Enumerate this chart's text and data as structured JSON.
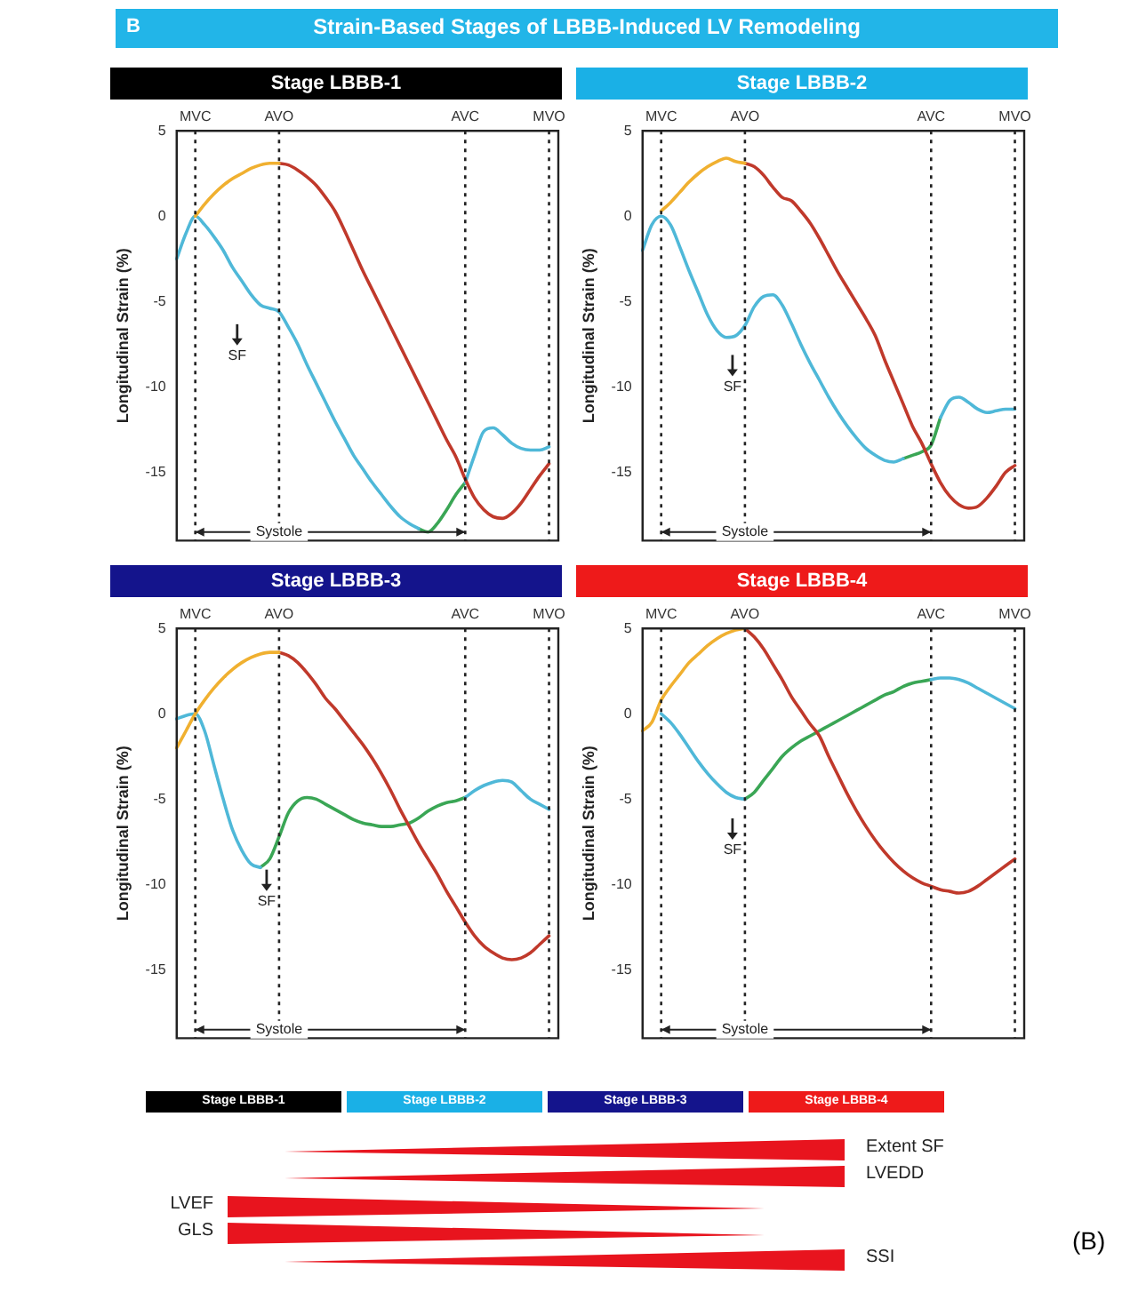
{
  "chart_data": [
    {
      "type": "other",
      "title": "Strain-Based Stages of LBBB-Induced LV Remodeling",
      "annotations": [
        "B"
      ]
    },
    {
      "type": "line",
      "title": "Stage LBBB-1",
      "ylabel": "Longitudinal Strain (%)",
      "ylim": [
        -19,
        5
      ],
      "yticks": [
        5,
        0,
        -5,
        -10,
        -15
      ],
      "grid": false,
      "legend": false,
      "marker": "none",
      "line_style": "solid",
      "categories": [
        null,
        null,
        "MVC",
        null,
        null,
        null,
        null,
        null,
        null,
        null,
        null,
        "AVO",
        null,
        null,
        null,
        null,
        null,
        null,
        null,
        null,
        null,
        null,
        null,
        null,
        null,
        null,
        null,
        null,
        null,
        null,
        null,
        "AVC",
        null,
        null,
        null,
        null,
        null,
        null,
        null,
        null,
        "MVO",
        null
      ],
      "series": [
        {
          "color": "#f0b030",
          "values": [
            null,
            null,
            0,
            0.7,
            1.3,
            1.8,
            2.2,
            2.5,
            2.8,
            3,
            3.1,
            3.1,
            null,
            null,
            null,
            null,
            null,
            null,
            null,
            null,
            null,
            null,
            null,
            null,
            null,
            null,
            null,
            null,
            null,
            null,
            null,
            null,
            null,
            null,
            null,
            null,
            null,
            null,
            null,
            null,
            null,
            null
          ]
        },
        {
          "color": "#c0392b",
          "values": [
            null,
            null,
            null,
            null,
            null,
            null,
            null,
            null,
            null,
            null,
            null,
            3.1,
            3,
            2.7,
            2.3,
            1.8,
            1.1,
            0.3,
            -0.8,
            -2,
            -3.2,
            -4.3,
            -5.4,
            -6.5,
            -7.6,
            -8.7,
            -9.8,
            -10.9,
            -12,
            -13.1,
            -14.1,
            -15.4,
            -16.5,
            -17.2,
            -17.6,
            -17.7,
            -17.4,
            -16.8,
            -16,
            -15.2,
            -14.5,
            null
          ]
        },
        {
          "color": "#4fb8d8",
          "values": [
            -2.5,
            -1,
            0,
            -0.5,
            -1.2,
            -2,
            -3,
            -3.8,
            -4.6,
            -5.2,
            -5.4,
            -5.6,
            -6.5,
            -7.5,
            -8.7,
            -9.8,
            -10.9,
            -12,
            -13,
            -14,
            -14.8,
            -15.6,
            -16.3,
            -17,
            -17.6,
            -18,
            -18.3,
            null,
            null,
            null,
            null,
            -15.6,
            -14,
            -12.6,
            -12.4,
            -12.8,
            -13.3,
            -13.6,
            -13.7,
            -13.7,
            -13.5,
            null
          ]
        },
        {
          "color": "#3aa655",
          "values": [
            null,
            null,
            null,
            null,
            null,
            null,
            null,
            null,
            null,
            null,
            null,
            null,
            null,
            null,
            null,
            null,
            null,
            null,
            null,
            null,
            null,
            null,
            null,
            null,
            null,
            null,
            -18.3,
            -18.5,
            -18,
            -17.2,
            -16.3,
            -15.6,
            null,
            null,
            null,
            null,
            null,
            null,
            null,
            null,
            null,
            null
          ]
        }
      ],
      "ref_lines": [
        {
          "axis": "x",
          "value": "MVC",
          "line_style": "dotted"
        },
        {
          "axis": "x",
          "value": "AVO",
          "line_style": "dotted"
        },
        {
          "axis": "x",
          "value": "AVC",
          "line_style": "dotted"
        },
        {
          "axis": "x",
          "value": "MVO",
          "line_style": "dotted"
        }
      ],
      "annotations": [
        "SF",
        {
          "text": "Systole",
          "x": "AVO",
          "y": -18.5
        }
      ]
    },
    {
      "type": "line",
      "title": "Stage LBBB-2",
      "ylabel": "Longitudinal Strain (%)",
      "ylim": [
        -19,
        5
      ],
      "yticks": [
        5,
        0,
        -5,
        -10,
        -15
      ],
      "grid": false,
      "legend": false,
      "marker": "none",
      "line_style": "solid",
      "categories": [
        null,
        null,
        "MVC",
        null,
        null,
        null,
        null,
        null,
        null,
        null,
        null,
        "AVO",
        null,
        null,
        null,
        null,
        null,
        null,
        null,
        null,
        null,
        null,
        null,
        null,
        null,
        null,
        null,
        null,
        null,
        null,
        null,
        "AVC",
        null,
        null,
        null,
        null,
        null,
        null,
        null,
        null,
        "MVO",
        null
      ],
      "series": [
        {
          "color": "#f0b030",
          "values": [
            null,
            null,
            0.3,
            0.8,
            1.4,
            2,
            2.5,
            2.9,
            3.2,
            3.4,
            3.2,
            3.1,
            null,
            null,
            null,
            null,
            null,
            null,
            null,
            null,
            null,
            null,
            null,
            null,
            null,
            null,
            null,
            null,
            null,
            null,
            null,
            null,
            null,
            null,
            null,
            null,
            null,
            null,
            null,
            null,
            null,
            null
          ]
        },
        {
          "color": "#c0392b",
          "values": [
            null,
            null,
            null,
            null,
            null,
            null,
            null,
            null,
            null,
            null,
            null,
            3.1,
            2.9,
            2.4,
            1.7,
            1.1,
            0.9,
            0.3,
            -0.4,
            -1.3,
            -2.3,
            -3.3,
            -4.2,
            -5.1,
            -6,
            -7,
            -8.4,
            -9.7,
            -11,
            -12.3,
            -13.3,
            -14.5,
            -15.6,
            -16.4,
            -16.9,
            -17.1,
            -17,
            -16.5,
            -15.8,
            -15,
            -14.6,
            null
          ]
        },
        {
          "color": "#4fb8d8",
          "values": [
            -2,
            -0.5,
            0,
            -0.5,
            -1.8,
            -3.2,
            -4.5,
            -5.8,
            -6.7,
            -7.1,
            -7,
            -6.4,
            -5.3,
            -4.7,
            -4.6,
            -5.2,
            -6.3,
            -7.5,
            -8.6,
            -9.6,
            -10.6,
            -11.5,
            -12.3,
            -13,
            -13.6,
            -14,
            -14.3,
            -14.4,
            -14.2,
            null,
            null,
            null,
            -11.8,
            -10.8,
            -10.6,
            -10.9,
            -11.3,
            -11.5,
            -11.4,
            -11.3,
            -11.3,
            null
          ]
        },
        {
          "color": "#3aa655",
          "values": [
            null,
            null,
            null,
            null,
            null,
            null,
            null,
            null,
            null,
            null,
            null,
            null,
            null,
            null,
            null,
            null,
            null,
            null,
            null,
            null,
            null,
            null,
            null,
            null,
            null,
            null,
            null,
            null,
            -14.2,
            -14,
            -13.8,
            -13.4,
            -11.8,
            null,
            null,
            null,
            null,
            null,
            null,
            null,
            null,
            null
          ]
        }
      ],
      "ref_lines": [
        {
          "axis": "x",
          "value": "MVC",
          "line_style": "dotted"
        },
        {
          "axis": "x",
          "value": "AVO",
          "line_style": "dotted"
        },
        {
          "axis": "x",
          "value": "AVC",
          "line_style": "dotted"
        },
        {
          "axis": "x",
          "value": "MVO",
          "line_style": "dotted"
        }
      ],
      "annotations": [
        {
          "text": "SF",
          "x": "AVO",
          "y": -10
        },
        {
          "text": "Systole",
          "x": "AVO",
          "y": -18.5
        }
      ]
    },
    {
      "type": "line",
      "title": "Stage LBBB-3",
      "ylabel": "Longitudinal Strain (%)",
      "ylim": [
        -19,
        5
      ],
      "yticks": [
        5,
        0,
        -5,
        -10,
        -15
      ],
      "grid": false,
      "legend": false,
      "marker": "none",
      "line_style": "solid",
      "categories": [
        null,
        null,
        "MVC",
        null,
        null,
        null,
        null,
        null,
        null,
        null,
        null,
        "AVO",
        null,
        null,
        null,
        null,
        null,
        null,
        null,
        null,
        null,
        null,
        null,
        null,
        null,
        null,
        null,
        null,
        null,
        null,
        null,
        "AVC",
        null,
        null,
        null,
        null,
        null,
        null,
        null,
        null,
        "MVO",
        null
      ],
      "series": [
        {
          "color": "#f0b030",
          "values": [
            -2,
            -1,
            0,
            0.8,
            1.5,
            2.1,
            2.6,
            3,
            3.3,
            3.5,
            3.6,
            3.6,
            null,
            null,
            null,
            null,
            null,
            null,
            null,
            null,
            null,
            null,
            null,
            null,
            null,
            null,
            null,
            null,
            null,
            null,
            null,
            null,
            null,
            null,
            null,
            null,
            null,
            null,
            null,
            null,
            null,
            null
          ]
        },
        {
          "color": "#c0392b",
          "values": [
            null,
            null,
            null,
            null,
            null,
            null,
            null,
            null,
            null,
            null,
            null,
            3.6,
            3.4,
            3,
            2.4,
            1.7,
            0.9,
            0.3,
            -0.4,
            -1.1,
            -1.8,
            -2.6,
            -3.5,
            -4.5,
            -5.6,
            -6.6,
            -7.6,
            -8.5,
            -9.4,
            -10.4,
            -11.3,
            -12.2,
            -13,
            -13.6,
            -14,
            -14.3,
            -14.4,
            -14.3,
            -14,
            -13.5,
            -13,
            null
          ]
        },
        {
          "color": "#4fb8d8",
          "values": [
            -0.3,
            -0.1,
            0,
            -1,
            -3,
            -5,
            -6.8,
            -8,
            -8.8,
            -9,
            null,
            null,
            null,
            null,
            null,
            null,
            null,
            null,
            null,
            null,
            null,
            null,
            null,
            null,
            null,
            null,
            null,
            null,
            null,
            null,
            null,
            -4.9,
            -4.5,
            -4.2,
            -4,
            -3.9,
            -4,
            -4.5,
            -5,
            -5.3,
            -5.6,
            null
          ]
        },
        {
          "color": "#3aa655",
          "values": [
            null,
            null,
            null,
            null,
            null,
            null,
            null,
            null,
            null,
            -9,
            -8.5,
            -7.2,
            -5.8,
            -5.1,
            -4.9,
            -5,
            -5.3,
            -5.6,
            -5.9,
            -6.2,
            -6.4,
            -6.5,
            -6.6,
            -6.6,
            -6.5,
            -6.4,
            -6.1,
            -5.7,
            -5.4,
            -5.2,
            -5.1,
            -4.9,
            null,
            null,
            null,
            null,
            null,
            null,
            null,
            null,
            null,
            null
          ]
        }
      ],
      "ref_lines": [
        {
          "axis": "x",
          "value": "MVC",
          "line_style": "dotted"
        },
        {
          "axis": "x",
          "value": "AVO",
          "line_style": "dotted"
        },
        {
          "axis": "x",
          "value": "AVC",
          "line_style": "dotted"
        },
        {
          "axis": "x",
          "value": "MVO",
          "line_style": "dotted"
        }
      ],
      "annotations": [
        {
          "text": "SF",
          "x": "AVO",
          "y": -11
        },
        {
          "text": "Systole",
          "x": "AVO",
          "y": -18.5
        }
      ]
    },
    {
      "type": "line",
      "title": "Stage LBBB-4",
      "ylabel": "Longitudinal Strain (%)",
      "ylim": [
        -19,
        5
      ],
      "yticks": [
        5,
        0,
        -5,
        -10,
        -15
      ],
      "grid": false,
      "legend": false,
      "marker": "none",
      "line_style": "solid",
      "categories": [
        null,
        null,
        "MVC",
        null,
        null,
        null,
        null,
        null,
        null,
        null,
        null,
        "AVO",
        null,
        null,
        null,
        null,
        null,
        null,
        null,
        null,
        null,
        null,
        null,
        null,
        null,
        null,
        null,
        null,
        null,
        null,
        null,
        "AVC",
        null,
        null,
        null,
        null,
        null,
        null,
        null,
        null,
        "MVO",
        null
      ],
      "series": [
        {
          "color": "#f0b030",
          "values": [
            -1,
            -0.5,
            0.8,
            1.6,
            2.3,
            3,
            3.5,
            4,
            4.4,
            4.7,
            4.9,
            5,
            null,
            null,
            null,
            null,
            null,
            null,
            null,
            null,
            null,
            null,
            null,
            null,
            null,
            null,
            null,
            null,
            null,
            null,
            null,
            null,
            null,
            null,
            null,
            null,
            null,
            null,
            null,
            null,
            null,
            null
          ]
        },
        {
          "color": "#c0392b",
          "values": [
            null,
            null,
            null,
            null,
            null,
            null,
            null,
            null,
            null,
            null,
            null,
            5,
            4.5,
            3.8,
            2.9,
            2,
            1,
            0.2,
            -0.6,
            -1.3,
            -2.5,
            -3.6,
            -4.7,
            -5.7,
            -6.6,
            -7.4,
            -8.1,
            -8.7,
            -9.2,
            -9.6,
            -9.9,
            -10.1,
            -10.3,
            -10.4,
            -10.5,
            -10.4,
            -10.1,
            -9.7,
            -9.3,
            -8.9,
            -8.5,
            null
          ]
        },
        {
          "color": "#4fb8d8",
          "values": [
            null,
            null,
            0,
            -0.5,
            -1.2,
            -2,
            -2.8,
            -3.5,
            -4.1,
            -4.6,
            -4.9,
            -5,
            null,
            null,
            null,
            null,
            null,
            null,
            null,
            null,
            null,
            null,
            null,
            null,
            null,
            null,
            null,
            null,
            null,
            null,
            null,
            2,
            2.1,
            2.1,
            2,
            1.8,
            1.5,
            1.2,
            0.9,
            0.6,
            0.3,
            null
          ]
        },
        {
          "color": "#3aa655",
          "values": [
            null,
            null,
            null,
            null,
            null,
            null,
            null,
            null,
            null,
            null,
            null,
            -5,
            -4.6,
            -3.9,
            -3.2,
            -2.5,
            -2,
            -1.6,
            -1.3,
            -1,
            -0.7,
            -0.4,
            -0.1,
            0.2,
            0.5,
            0.8,
            1.1,
            1.3,
            1.6,
            1.8,
            1.9,
            2,
            null,
            null,
            null,
            null,
            null,
            null,
            null,
            null,
            null,
            null
          ]
        }
      ],
      "ref_lines": [
        {
          "axis": "x",
          "value": "MVC",
          "line_style": "dotted"
        },
        {
          "axis": "x",
          "value": "AVO",
          "line_style": "dotted"
        },
        {
          "axis": "x",
          "value": "AVC",
          "line_style": "dotted"
        },
        {
          "axis": "x",
          "value": "MVO",
          "line_style": "dotted"
        }
      ],
      "annotations": [
        {
          "text": "SF",
          "x": "AVO",
          "y": -8
        },
        {
          "text": "Systole",
          "x": "AVO",
          "y": -18.5
        }
      ]
    },
    {
      "type": "other",
      "annotations": [
        "Stage LBBB-1",
        "Stage LBBB-2",
        "Stage LBBB-3",
        "Stage LBBB-4",
        "Extent SF",
        "LVEDD",
        "LVEF",
        "GLS",
        "SSI",
        "(B)"
      ]
    }
  ]
}
